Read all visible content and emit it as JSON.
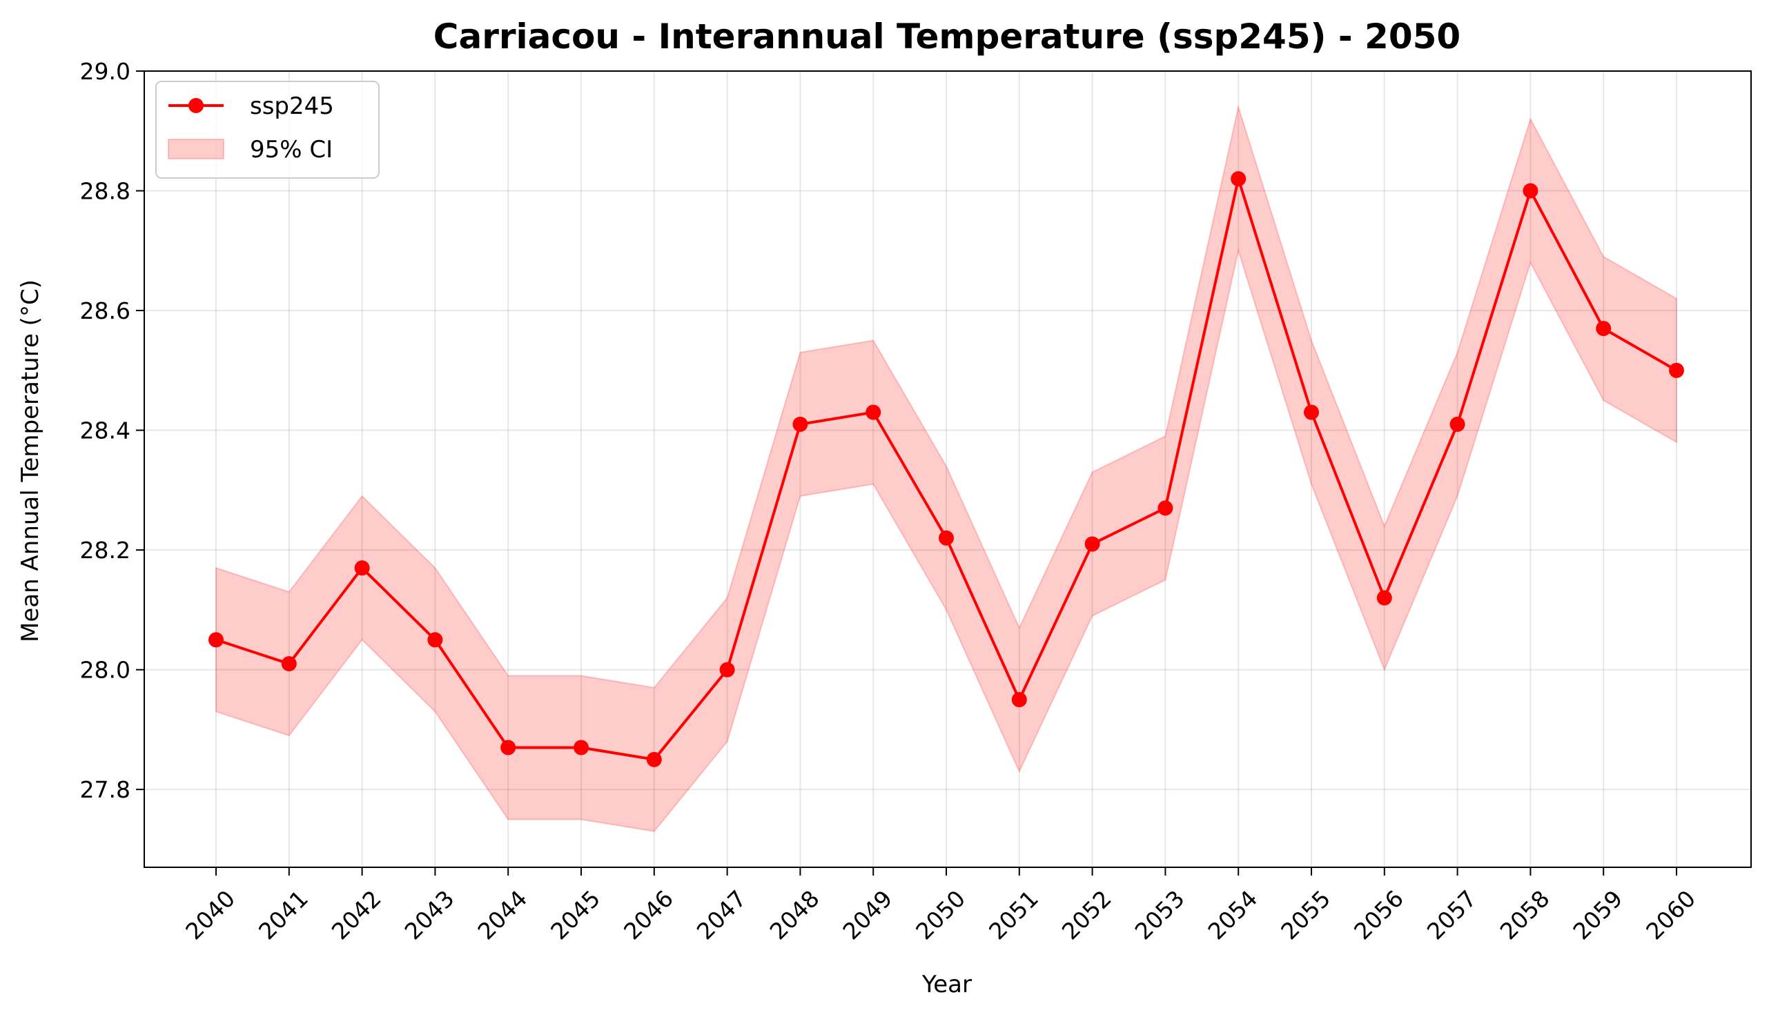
{
  "chart_data": {
    "type": "line",
    "title": "Carriacou - Interannual Temperature (ssp245) - 2050",
    "xlabel": "Year",
    "ylabel": "Mean Annual Temperature (°C)",
    "x": [
      "2040",
      "2041",
      "2042",
      "2043",
      "2044",
      "2045",
      "2046",
      "2047",
      "2048",
      "2049",
      "2050",
      "2051",
      "2052",
      "2053",
      "2054",
      "2055",
      "2056",
      "2057",
      "2058",
      "2059",
      "2060"
    ],
    "series": [
      {
        "name": "ssp245",
        "color": "#ff0000",
        "values": [
          28.05,
          28.01,
          28.17,
          28.05,
          27.87,
          27.87,
          27.85,
          28.0,
          28.41,
          28.43,
          28.22,
          27.95,
          28.21,
          28.27,
          28.82,
          28.43,
          28.12,
          28.41,
          28.8,
          28.57,
          28.5
        ]
      }
    ],
    "ci": {
      "name": "95% CI",
      "color": "#ff0000",
      "lower": [
        27.93,
        27.89,
        28.05,
        27.93,
        27.75,
        27.75,
        27.73,
        27.88,
        28.29,
        28.31,
        28.1,
        27.83,
        28.09,
        28.15,
        28.7,
        28.31,
        28.0,
        28.29,
        28.68,
        28.45,
        28.38
      ],
      "upper": [
        28.17,
        28.13,
        28.29,
        28.17,
        27.99,
        27.99,
        27.97,
        28.12,
        28.53,
        28.55,
        28.34,
        28.07,
        28.33,
        28.39,
        28.94,
        28.55,
        28.24,
        28.53,
        28.92,
        28.69,
        28.62
      ]
    },
    "ylim": [
      27.67,
      29.0
    ],
    "yticks": [
      "27.8",
      "28.0",
      "28.2",
      "28.4",
      "28.6",
      "28.8",
      "29.0"
    ],
    "grid": true,
    "legend_position": "top-left"
  }
}
